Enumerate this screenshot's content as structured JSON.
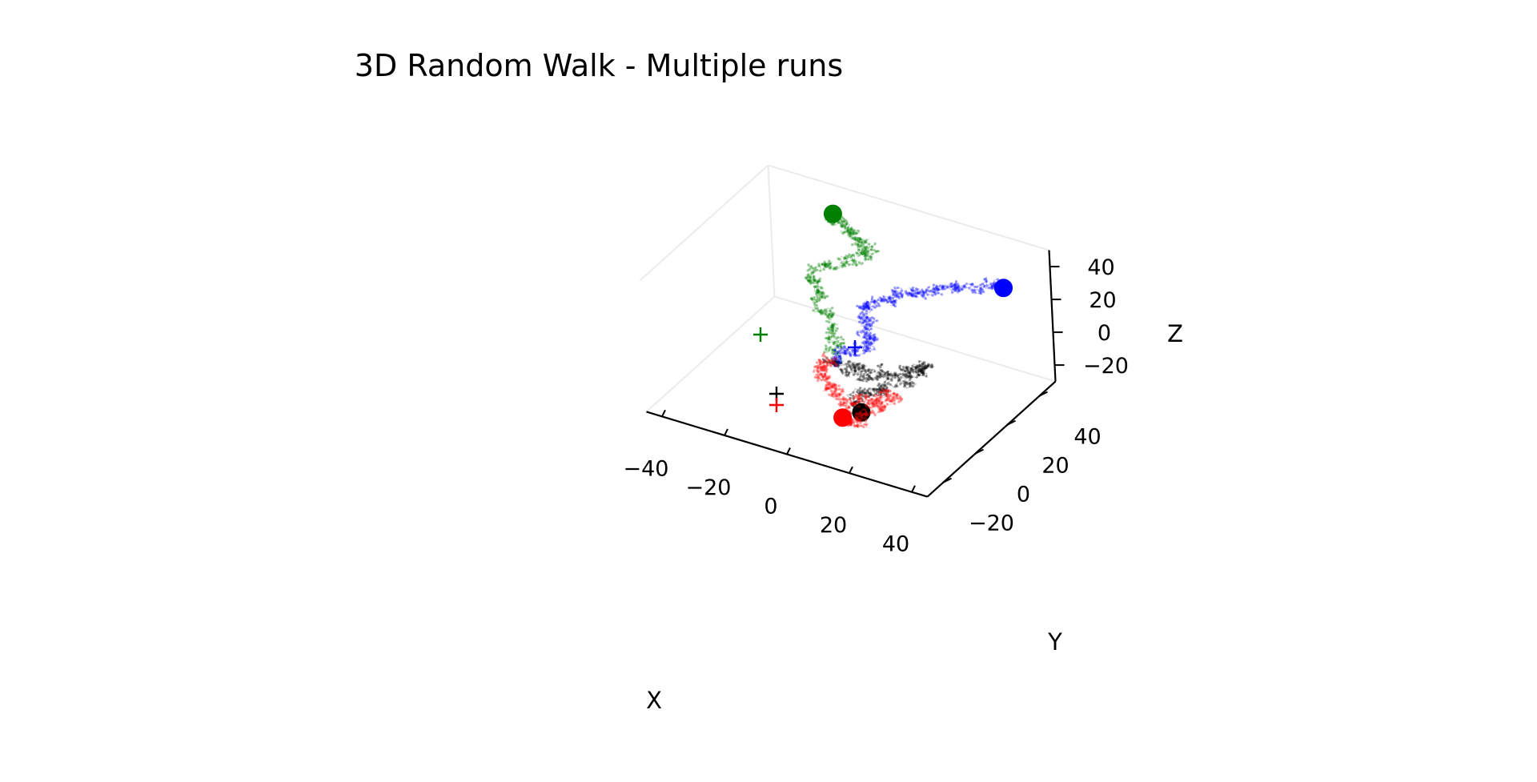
{
  "chart_data": {
    "type": "scatter3d",
    "title": "3D Random Walk - Multiple runs",
    "xlabel": "X",
    "ylabel": "Y",
    "zlabel": "Z",
    "xlim": [
      -45,
      45
    ],
    "ylim": [
      -30,
      50
    ],
    "zlim": [
      -30,
      50
    ],
    "x_ticks": [
      "−40",
      "−20",
      "0",
      "20",
      "40"
    ],
    "y_ticks": [
      "−20",
      "0",
      "20",
      "40"
    ],
    "z_ticks": [
      "−20",
      "0",
      "20",
      "40"
    ],
    "series": [
      {
        "color": "#008000",
        "start_marker": "+",
        "end_marker": "circle",
        "start": [
          0,
          0,
          0
        ],
        "end": [
          -22,
          45,
          38
        ],
        "path_hint": [
          [
            0,
            0,
            0
          ],
          [
            -2,
            6,
            8
          ],
          [
            -8,
            12,
            14
          ],
          [
            -14,
            18,
            20
          ],
          [
            -18,
            24,
            24
          ],
          [
            -10,
            30,
            30
          ],
          [
            -4,
            34,
            36
          ],
          [
            -12,
            38,
            34
          ],
          [
            -20,
            42,
            36
          ],
          [
            -22,
            45,
            38
          ]
        ]
      },
      {
        "color": "#0000ff",
        "start_marker": "+",
        "end_marker": "circle",
        "start": [
          0,
          0,
          0
        ],
        "end": [
          35,
          40,
          30
        ],
        "path_hint": [
          [
            0,
            0,
            0
          ],
          [
            4,
            4,
            4
          ],
          [
            8,
            10,
            8
          ],
          [
            4,
            14,
            14
          ],
          [
            2,
            18,
            20
          ],
          [
            8,
            22,
            24
          ],
          [
            14,
            26,
            26
          ],
          [
            20,
            32,
            28
          ],
          [
            28,
            36,
            30
          ],
          [
            35,
            40,
            30
          ]
        ]
      },
      {
        "color": "#000000",
        "start_marker": "+",
        "end_marker": "circle",
        "start": [
          0,
          0,
          0
        ],
        "end": [
          14,
          -10,
          -14
        ],
        "path_hint": [
          [
            0,
            0,
            0
          ],
          [
            6,
            2,
            -2
          ],
          [
            12,
            4,
            -6
          ],
          [
            18,
            10,
            -4
          ],
          [
            24,
            14,
            -2
          ],
          [
            20,
            8,
            -8
          ],
          [
            14,
            2,
            -10
          ],
          [
            10,
            -4,
            -12
          ],
          [
            14,
            -10,
            -14
          ]
        ]
      },
      {
        "color": "#ff0000",
        "start_marker": "+",
        "end_marker": "circle",
        "start": [
          0,
          0,
          0
        ],
        "end": [
          10,
          -14,
          -16
        ],
        "path_hint": [
          [
            0,
            0,
            0
          ],
          [
            -2,
            -4,
            -4
          ],
          [
            4,
            -8,
            -6
          ],
          [
            10,
            -12,
            -10
          ],
          [
            16,
            -8,
            -8
          ],
          [
            22,
            -2,
            -6
          ],
          [
            18,
            -10,
            -12
          ],
          [
            14,
            -16,
            -16
          ],
          [
            10,
            -14,
            -16
          ]
        ]
      }
    ]
  }
}
